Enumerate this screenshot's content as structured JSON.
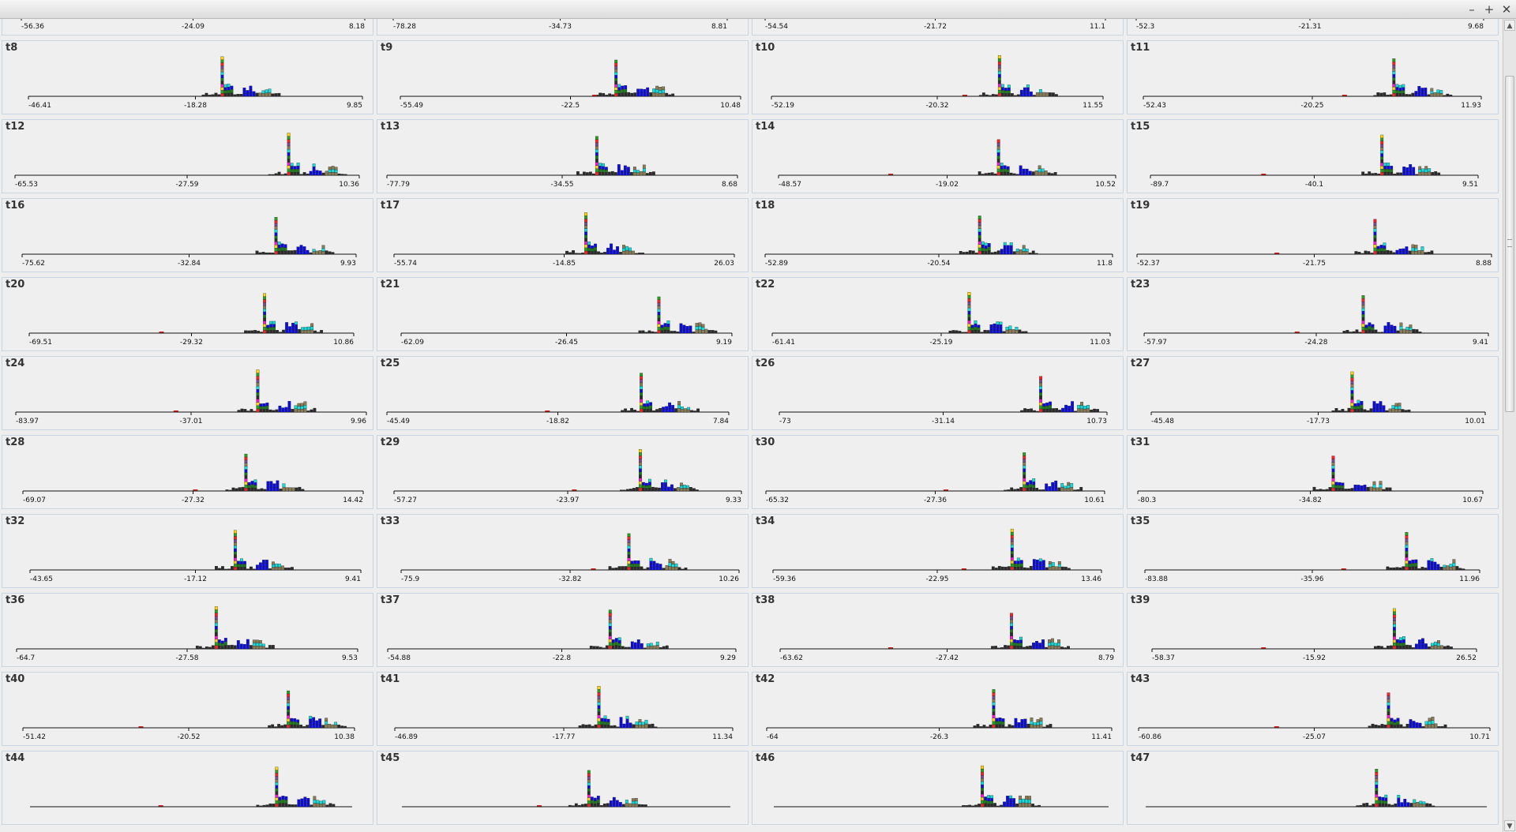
{
  "window": {
    "controls": {
      "minimize": "–",
      "maximize": "+",
      "close": "✕"
    },
    "scrollbar": {
      "up_arrow": "▲",
      "down_arrow": "▼",
      "position_fraction": 0.02,
      "visible_fraction": 0.42
    }
  },
  "palette": [
    "#ff1f1f",
    "#25a11c",
    "#ffd400",
    "#ff14d2",
    "#2b2b2b",
    "#1a7a1a",
    "#0b0be8",
    "#10dcdc",
    "#8a7d55",
    "#7b4a8e"
  ],
  "chart_data": [
    {
      "title": "",
      "type": "bar",
      "x_ticks": [
        "-56.36",
        "-24.09",
        "8.18"
      ]
    },
    {
      "title": "",
      "type": "bar",
      "x_ticks": [
        "-78.28",
        "-34.73",
        "8.81"
      ]
    },
    {
      "title": "",
      "type": "bar",
      "x_ticks": [
        "-54.54",
        "-21.72",
        "11.1"
      ]
    },
    {
      "title": "",
      "type": "bar",
      "x_ticks": [
        "-52.3",
        "-21.31",
        "9.68"
      ]
    },
    {
      "title": "t8",
      "type": "bar",
      "x_ticks": [
        "-46.41",
        "-18.28",
        "9.85"
      ]
    },
    {
      "title": "t9",
      "type": "bar",
      "x_ticks": [
        "-55.49",
        "-22.5",
        "10.48"
      ]
    },
    {
      "title": "t10",
      "type": "bar",
      "x_ticks": [
        "-52.19",
        "-20.32",
        "11.55"
      ]
    },
    {
      "title": "t11",
      "type": "bar",
      "x_ticks": [
        "-52.43",
        "-20.25",
        "11.93"
      ]
    },
    {
      "title": "t12",
      "type": "bar",
      "x_ticks": [
        "-65.53",
        "-27.59",
        "10.36"
      ]
    },
    {
      "title": "t13",
      "type": "bar",
      "x_ticks": [
        "-77.79",
        "-34.55",
        "8.68"
      ]
    },
    {
      "title": "t14",
      "type": "bar",
      "x_ticks": [
        "-48.57",
        "-19.02",
        "10.52"
      ]
    },
    {
      "title": "t15",
      "type": "bar",
      "x_ticks": [
        "-89.7",
        "-40.1",
        "9.51"
      ]
    },
    {
      "title": "t16",
      "type": "bar",
      "x_ticks": [
        "-75.62",
        "-32.84",
        "9.93"
      ]
    },
    {
      "title": "t17",
      "type": "bar",
      "x_ticks": [
        "-55.74",
        "-14.85",
        "26.03"
      ]
    },
    {
      "title": "t18",
      "type": "bar",
      "x_ticks": [
        "-52.89",
        "-20.54",
        "11.8"
      ]
    },
    {
      "title": "t19",
      "type": "bar",
      "x_ticks": [
        "-52.37",
        "-21.75",
        "8.88"
      ]
    },
    {
      "title": "t20",
      "type": "bar",
      "x_ticks": [
        "-69.51",
        "-29.32",
        "10.86"
      ]
    },
    {
      "title": "t21",
      "type": "bar",
      "x_ticks": [
        "-62.09",
        "-26.45",
        "9.19"
      ]
    },
    {
      "title": "t22",
      "type": "bar",
      "x_ticks": [
        "-61.41",
        "-25.19",
        "11.03"
      ]
    },
    {
      "title": "t23",
      "type": "bar",
      "x_ticks": [
        "-57.97",
        "-24.28",
        "9.41"
      ]
    },
    {
      "title": "t24",
      "type": "bar",
      "x_ticks": [
        "-83.97",
        "-37.01",
        "9.96"
      ]
    },
    {
      "title": "t25",
      "type": "bar",
      "x_ticks": [
        "-45.49",
        "-18.82",
        "7.84"
      ]
    },
    {
      "title": "t26",
      "type": "bar",
      "x_ticks": [
        "-73",
        "-31.14",
        "10.73"
      ]
    },
    {
      "title": "t27",
      "type": "bar",
      "x_ticks": [
        "-45.48",
        "-17.73",
        "10.01"
      ]
    },
    {
      "title": "t28",
      "type": "bar",
      "x_ticks": [
        "-69.07",
        "-27.32",
        "14.42"
      ]
    },
    {
      "title": "t29",
      "type": "bar",
      "x_ticks": [
        "-57.27",
        "-23.97",
        "9.33"
      ]
    },
    {
      "title": "t30",
      "type": "bar",
      "x_ticks": [
        "-65.32",
        "-27.36",
        "10.61"
      ]
    },
    {
      "title": "t31",
      "type": "bar",
      "x_ticks": [
        "-80.3",
        "-34.82",
        "10.67"
      ]
    },
    {
      "title": "t32",
      "type": "bar",
      "x_ticks": [
        "-43.65",
        "-17.12",
        "9.41"
      ]
    },
    {
      "title": "t33",
      "type": "bar",
      "x_ticks": [
        "-75.9",
        "-32.82",
        "10.26"
      ]
    },
    {
      "title": "t34",
      "type": "bar",
      "x_ticks": [
        "-59.36",
        "-22.95",
        "13.46"
      ]
    },
    {
      "title": "t35",
      "type": "bar",
      "x_ticks": [
        "-83.88",
        "-35.96",
        "11.96"
      ]
    },
    {
      "title": "t36",
      "type": "bar",
      "x_ticks": [
        "-64.7",
        "-27.58",
        "9.53"
      ]
    },
    {
      "title": "t37",
      "type": "bar",
      "x_ticks": [
        "-54.88",
        "-22.8",
        "9.29"
      ]
    },
    {
      "title": "t38",
      "type": "bar",
      "x_ticks": [
        "-63.62",
        "-27.42",
        "8.79"
      ]
    },
    {
      "title": "t39",
      "type": "bar",
      "x_ticks": [
        "-58.37",
        "-15.92",
        "26.52"
      ]
    },
    {
      "title": "t40",
      "type": "bar",
      "x_ticks": [
        "-51.42",
        "-20.52",
        "10.38"
      ]
    },
    {
      "title": "t41",
      "type": "bar",
      "x_ticks": [
        "-46.89",
        "-17.77",
        "11.34"
      ]
    },
    {
      "title": "t42",
      "type": "bar",
      "x_ticks": [
        "-64",
        "-26.3",
        "11.41"
      ]
    },
    {
      "title": "t43",
      "type": "bar",
      "x_ticks": [
        "-60.86",
        "-25.07",
        "10.71"
      ]
    },
    {
      "title": "t44",
      "type": "bar",
      "x_ticks": []
    },
    {
      "title": "t45",
      "type": "bar",
      "x_ticks": []
    },
    {
      "title": "t46",
      "type": "bar",
      "x_ticks": []
    },
    {
      "title": "t47",
      "type": "bar",
      "x_ticks": []
    }
  ]
}
